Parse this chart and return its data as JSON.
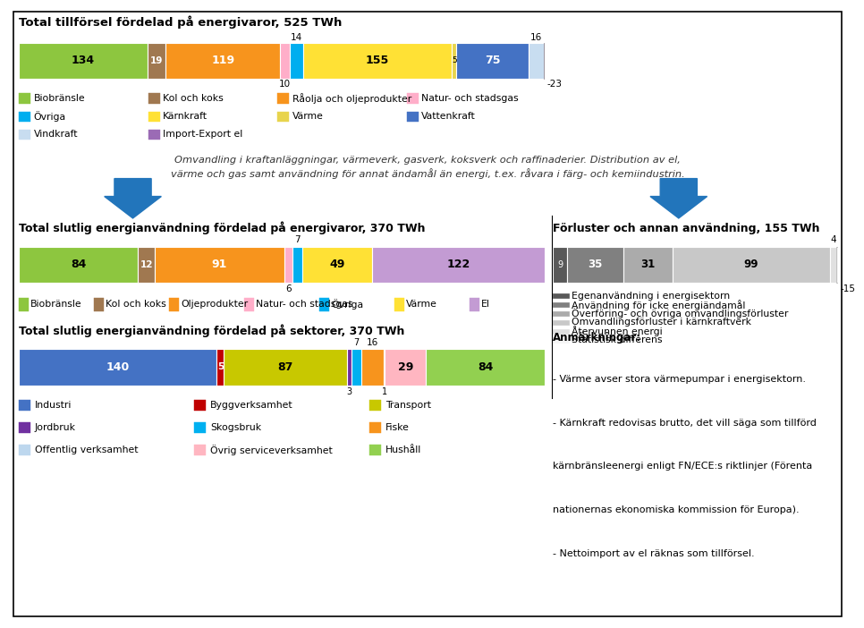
{
  "title1": "Total tillförsel fördelad på energivaror, 525 TWh",
  "bar1": {
    "labels": [
      "Biobränsle",
      "Kol och koks",
      "Råolja och oljeprodukter",
      "Natur- och stadsgas",
      "Övriga",
      "Kärnkraft",
      "Värme",
      "Vattenkraft",
      "Vindkraft",
      "Import-Export el"
    ],
    "values": [
      134,
      19,
      119,
      10,
      14,
      155,
      5,
      75,
      16,
      -23
    ],
    "colors": [
      "#8DC63F",
      "#A07850",
      "#F7941D",
      "#FFAEC9",
      "#00AEEF",
      "#FFE135",
      "#E8D44D",
      "#4472C4",
      "#C8DDF0",
      "#9B6BB5"
    ]
  },
  "bar1_leg_labels": [
    "Biobränsle",
    "Kol och koks",
    "Råolja och oljeprodukter",
    "Natur- och stadsgas",
    "Övriga",
    "Kärnkraft",
    "Värme",
    "Vattenkraft",
    "Vindkraft",
    "Import-Export el"
  ],
  "bar1_leg_colors": [
    "#8DC63F",
    "#A07850",
    "#F7941D",
    "#FFAEC9",
    "#00AEEF",
    "#FFE135",
    "#E8D44D",
    "#4472C4",
    "#C8DDF0",
    "#9B6BB5"
  ],
  "italic_text1": "Omvandling i kraftanläggningar, värmeverk, gasverk, koksverk och raffinaderier. Distribution av el,",
  "italic_text2": "värme och gas samt användning för annat ändamål än energi, t.ex. råvara i färg- och kemiindustrin.",
  "title2": "Total slutlig energianvändning fördelad på energivaror, 370 TWh",
  "bar2": {
    "labels": [
      "Biobränsle",
      "Kol och koks",
      "Oljeprodukter",
      "Natur- och stadsgas",
      "Övriga",
      "Värme",
      "El"
    ],
    "values": [
      84,
      12,
      91,
      6,
      7,
      49,
      122
    ],
    "colors": [
      "#8DC63F",
      "#A07850",
      "#F7941D",
      "#FFAEC9",
      "#00AEEF",
      "#FFE135",
      "#C39BD3"
    ]
  },
  "title3": "Förluster och annan användning, 155 TWh",
  "bar3": {
    "labels": [
      "Egenanvändning i energisektorn",
      "Användning för icke energiändamål",
      "Överföring- och övriga omvandlingsförluster",
      "Omvandlingsförluster i kärnkraftverk",
      "Återvunnen energi",
      "Statistisk differens"
    ],
    "values": [
      9,
      35,
      31,
      99,
      4,
      -15
    ],
    "colors": [
      "#595959",
      "#808080",
      "#ABABAB",
      "#C8C8C8",
      "#E0E0E0",
      "#F5F5F5"
    ]
  },
  "title4": "Total slutlig energianvändning fördelad på sektorer, 370 TWh",
  "bar4": {
    "labels": [
      "Industri",
      "Byggverksamhet",
      "Transport",
      "Jordbruk",
      "Skogsbruk",
      "Fiske",
      "Offentlig verksamhet",
      "Övrig serviceverksamhet",
      "Hushåll"
    ],
    "values": [
      140,
      5,
      87,
      3,
      7,
      16,
      1,
      29,
      84
    ],
    "colors": [
      "#4472C4",
      "#C00000",
      "#C8C800",
      "#7030A0",
      "#00B0F0",
      "#F7941D",
      "#BDD7EE",
      "#FFB6C1",
      "#92D050"
    ]
  },
  "notes_title": "Anmärkningar:",
  "notes_lines": [
    "- Värme avser stora värmepumpar i energisektorn.",
    "- Kärnkraft redovisas brutto, det vill säga som tillförd",
    "kärnbränsleenergi enligt FN/ECE:s riktlinjer (Förenta",
    "nationernas ekonomiska kommission för Europa).",
    "- Nettoimport av el räknas som tillförsel."
  ],
  "bg_color": "#FFFFFF"
}
